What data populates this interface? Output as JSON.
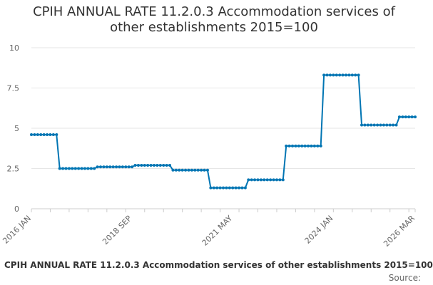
{
  "chart_data": {
    "type": "line",
    "title_line1": "CPIH ANNUAL RATE 11.2.0.3 Accommodation services of",
    "title_line2": "other establishments 2015=100",
    "xlabel": "",
    "ylabel": "",
    "ylim": [
      0,
      10
    ],
    "yticks": [
      "0",
      "2.5",
      "5",
      "7.5",
      "10"
    ],
    "ytick_values": [
      0,
      2.5,
      5,
      7.5,
      10
    ],
    "xticks": [
      {
        "label": "2016 JAN",
        "index": 0
      },
      {
        "label": "2018 SEP",
        "index": 32
      },
      {
        "label": "2021 MAY",
        "index": 64
      },
      {
        "label": "2024 JAN",
        "index": 96
      },
      {
        "label": "2026 MAR",
        "index": 122
      }
    ],
    "grid": true,
    "legend": "none",
    "series_color": "#0075b3",
    "series": [
      {
        "name": "CPIH ANNUAL RATE 11.2.0.3 Accommodation services of other establishments 2015=100",
        "segments": [
          {
            "count": 9,
            "value": 4.6
          },
          {
            "count": 12,
            "value": 2.5
          },
          {
            "count": 12,
            "value": 2.6
          },
          {
            "count": 12,
            "value": 2.7
          },
          {
            "count": 12,
            "value": 2.4
          },
          {
            "count": 12,
            "value": 1.3
          },
          {
            "count": 12,
            "value": 1.8
          },
          {
            "count": 12,
            "value": 3.9
          },
          {
            "count": 12,
            "value": 8.3
          },
          {
            "count": 12,
            "value": 5.2
          },
          {
            "count": 6,
            "value": 5.7
          }
        ]
      }
    ]
  },
  "footer": {
    "title": "CPIH ANNUAL RATE 11.2.0.3 Accommodation services of other establishments 2015=100",
    "source": "Source:"
  }
}
